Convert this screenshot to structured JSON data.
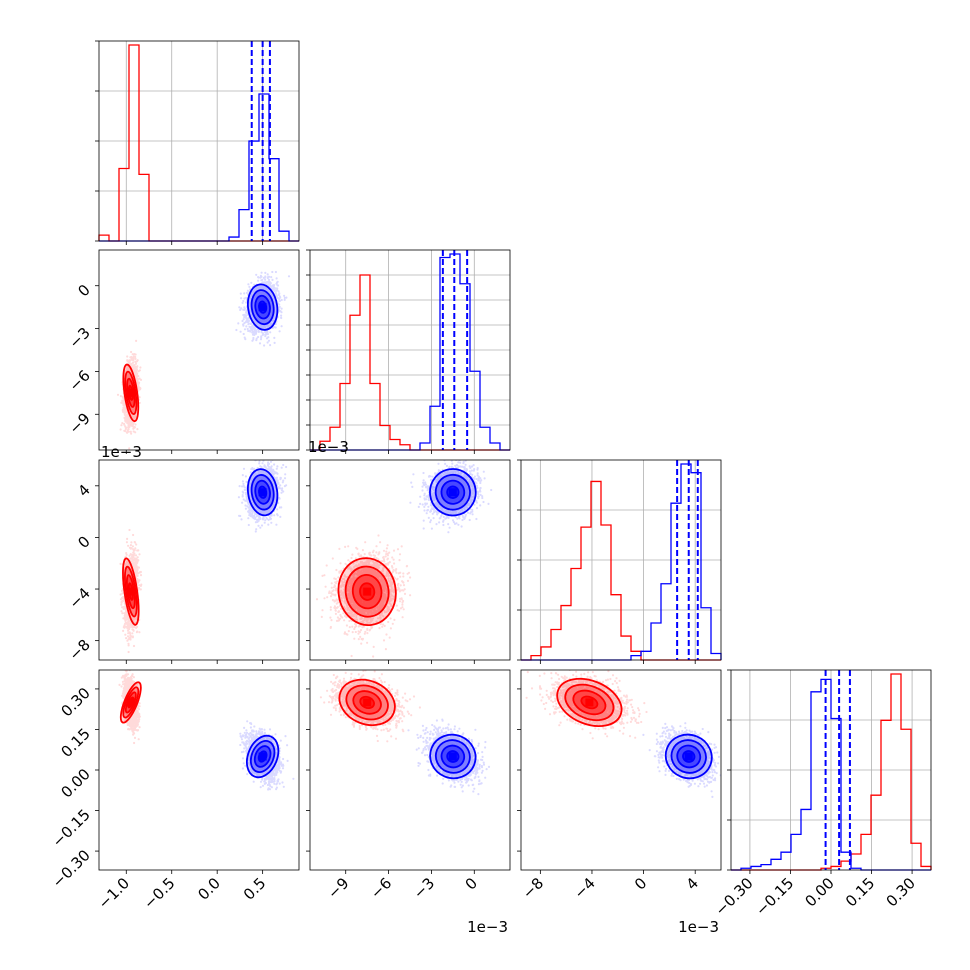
{
  "chart_data": {
    "type": "scatter",
    "title": "",
    "grid": true,
    "legend": "none",
    "colors": {
      "red": "#ff0000",
      "blue": "#0000ff"
    },
    "series": [
      {
        "color": "red"
      },
      {
        "color": "blue"
      }
    ],
    "parameters": [
      {
        "range": [
          -1.3,
          0.9
        ],
        "ticks": [
          -1.0,
          -0.5,
          0.0,
          0.5
        ],
        "tick_labels": [
          "−1.0",
          "−0.5",
          "0.0",
          "0.5"
        ],
        "offset_text": "",
        "hist_left_offset_text": "",
        "hist_tick_count": 4,
        "red": {
          "mean": -0.95,
          "sd": 0.035
        },
        "blue": {
          "mean": 0.5,
          "sd": 0.08
        },
        "hist_bins": {
          "red": [
            0.03,
            0.0,
            0.37,
            1.0,
            0.34,
            0.0,
            0.0,
            0.0,
            0.0,
            0.0,
            0.0,
            0.0,
            0.0,
            0.0,
            0.0,
            0.0,
            0.0,
            0.0,
            0.0,
            0.0
          ],
          "blue": [
            0.0,
            0.0,
            0.0,
            0.0,
            0.0,
            0.0,
            0.0,
            0.0,
            0.0,
            0.0,
            0.0,
            0.0,
            0.0,
            0.02,
            0.16,
            0.51,
            0.75,
            0.42,
            0.05,
            0.0
          ]
        },
        "quantile_lines": [
          0.38,
          0.5,
          0.58
        ]
      },
      {
        "range": [
          -0.0115,
          0.0025
        ],
        "ticks": [
          -0.009,
          -0.006,
          -0.003,
          0.0
        ],
        "tick_labels": [
          "−9",
          "−6",
          "−3",
          "0"
        ],
        "offset_text": "1e−3",
        "hist_left_offset_text": "1e−3",
        "hist_tick_count": 8,
        "red": {
          "mean": -0.0075,
          "sd": 0.001
        },
        "blue": {
          "mean": -0.0015,
          "sd": 0.0008
        },
        "hist_bins": {
          "red": [
            0.0,
            0.05,
            0.13,
            0.38,
            0.77,
            1.0,
            0.38,
            0.14,
            0.06,
            0.03,
            0.0,
            0.0,
            0.0,
            0.0,
            0.0,
            0.0,
            0.0,
            0.0,
            0.0,
            0.0
          ],
          "blue": [
            0.0,
            0.0,
            0.0,
            0.0,
            0.0,
            0.0,
            0.0,
            0.0,
            0.0,
            0.0,
            0.0,
            0.04,
            0.25,
            1.1,
            1.12,
            0.95,
            0.45,
            0.13,
            0.04,
            0.0
          ]
        },
        "quantile_lines": [
          -0.0022,
          -0.0014,
          -0.0005
        ]
      },
      {
        "range": [
          -0.0095,
          0.006
        ],
        "ticks": [
          -0.008,
          -0.004,
          0.0,
          0.004
        ],
        "tick_labels": [
          "−8",
          "−4",
          "0",
          "4"
        ],
        "offset_text": "1e−3",
        "hist_left_offset_text": "",
        "hist_tick_count": 4,
        "red": {
          "mean": -0.0042,
          "sd": 0.0013
        },
        "blue": {
          "mean": 0.0035,
          "sd": 0.0009
        },
        "hist_bins": {
          "red": [
            0.0,
            0.02,
            0.06,
            0.14,
            0.25,
            0.42,
            0.61,
            0.82,
            0.62,
            0.3,
            0.11,
            0.04,
            0.0,
            0.0,
            0.0,
            0.0,
            0.0,
            0.0,
            0.0,
            0.0
          ],
          "blue": [
            0.0,
            0.0,
            0.0,
            0.0,
            0.0,
            0.0,
            0.0,
            0.0,
            0.0,
            0.0,
            0.0,
            0.02,
            0.04,
            0.17,
            0.35,
            0.72,
            0.9,
            0.86,
            0.24,
            0.03
          ]
        },
        "quantile_lines": [
          0.0026,
          0.0035,
          0.0042
        ]
      },
      {
        "range": [
          -0.37,
          0.37
        ],
        "ticks": [
          -0.3,
          -0.15,
          0.0,
          0.15,
          0.3
        ],
        "tick_labels": [
          "−0.30",
          "−0.15",
          "0.00",
          "0.15",
          "0.30"
        ],
        "offset_text": "",
        "hist_left_offset_text": "",
        "hist_tick_count": 4,
        "red": {
          "mean": 0.25,
          "sd": 0.04
        },
        "blue": {
          "mean": 0.05,
          "sd": 0.04
        },
        "hist_bins": {
          "red": [
            0.0,
            0.0,
            0.0,
            0.0,
            0.0,
            0.0,
            0.0,
            0.0,
            0.0,
            0.01,
            0.02,
            0.05,
            0.09,
            0.2,
            0.42,
            0.84,
            1.1,
            0.79,
            0.15,
            0.02
          ],
          "blue": [
            0.0,
            0.01,
            0.02,
            0.03,
            0.06,
            0.1,
            0.2,
            0.34,
            1.0,
            1.07,
            0.85,
            0.1,
            0.01,
            0.0,
            0.0,
            0.0,
            0.0,
            0.0,
            0.0,
            0.0
          ]
        },
        "quantile_lines": [
          -0.02,
          0.03,
          0.07
        ]
      }
    ]
  }
}
